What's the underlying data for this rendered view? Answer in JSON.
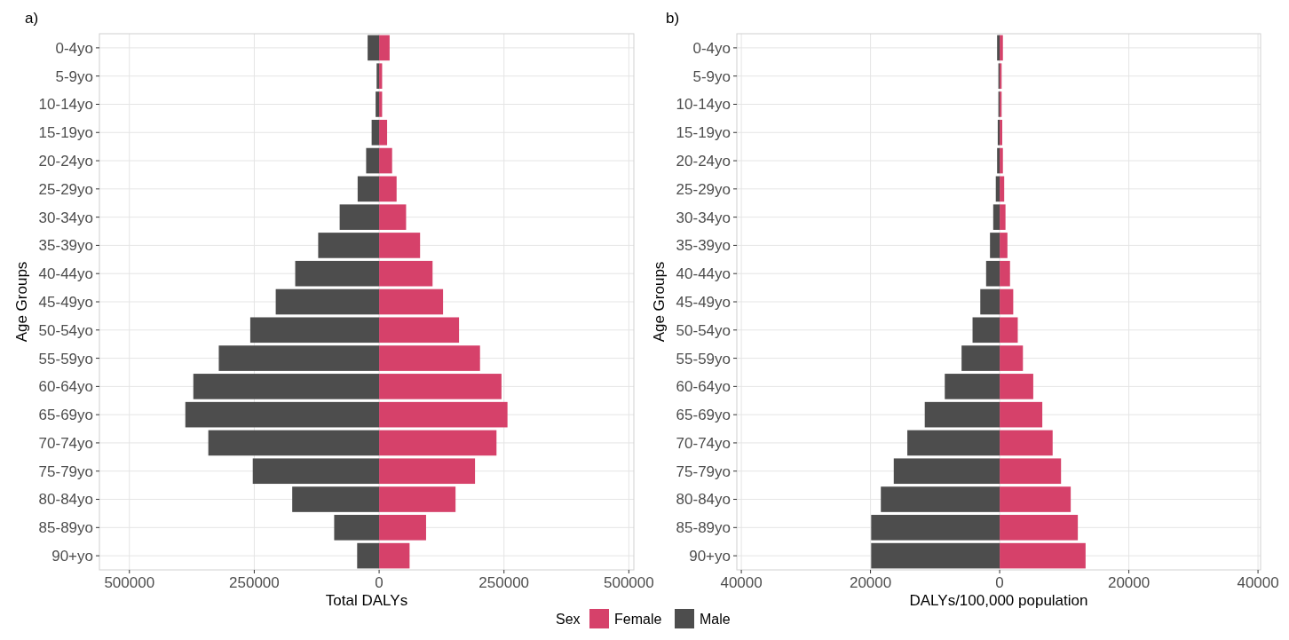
{
  "chart_data": [
    {
      "type": "bar",
      "orientation": "horizontal",
      "stacked": true,
      "title": "a)",
      "xlabel": "Total DALYs",
      "ylabel": "Age Groups",
      "legend_title": "Sex",
      "legend": "bottom",
      "grid": true,
      "categories": [
        "0-4yo",
        "5-9yo",
        "10-14yo",
        "15-19yo",
        "20-24yo",
        "25-29yo",
        "30-34yo",
        "35-39yo",
        "40-44yo",
        "45-49yo",
        "50-54yo",
        "55-59yo",
        "60-64yo",
        "65-69yo",
        "70-74yo",
        "75-79yo",
        "80-84yo",
        "85-89yo",
        "90+yo"
      ],
      "xlim": [
        -560000,
        510000
      ],
      "xticks": [
        {
          "value": -500000,
          "label": "500000"
        },
        {
          "value": -250000,
          "label": "250000"
        },
        0,
        250000,
        500000
      ],
      "series": [
        {
          "name": "Female",
          "color": "#d6416a",
          "values": [
            21000,
            6000,
            6000,
            16000,
            26000,
            35000,
            54000,
            82000,
            107000,
            128000,
            160000,
            202000,
            245000,
            257000,
            235000,
            192000,
            153000,
            94000,
            61000
          ]
        },
        {
          "name": "Male",
          "color": "#4d4d4d",
          "values": [
            -23000,
            -5000,
            -7000,
            -15000,
            -26000,
            -43000,
            -79000,
            -122000,
            -168000,
            -207000,
            -258000,
            -321000,
            -372000,
            -388000,
            -342000,
            -253000,
            -174000,
            -90000,
            -44000
          ]
        }
      ]
    },
    {
      "type": "bar",
      "orientation": "horizontal",
      "stacked": true,
      "title": "b)",
      "xlabel": "DALYs/100,000 population",
      "ylabel": "Age Groups",
      "grid": true,
      "categories": [
        "0-4yo",
        "5-9yo",
        "10-14yo",
        "15-19yo",
        "20-24yo",
        "25-29yo",
        "30-34yo",
        "35-39yo",
        "40-44yo",
        "45-49yo",
        "50-54yo",
        "55-59yo",
        "60-64yo",
        "65-69yo",
        "70-74yo",
        "75-79yo",
        "80-84yo",
        "85-89yo",
        "90+yo"
      ],
      "xlim": [
        -40700,
        40400
      ],
      "xticks": [
        {
          "value": -40000,
          "label": "40000"
        },
        {
          "value": -20000,
          "label": "20000"
        },
        0,
        20000,
        40000
      ],
      "series": [
        {
          "color": "#d6416a",
          "values": [
            500,
            300,
            300,
            400,
            500,
            700,
            900,
            1200,
            1600,
            2100,
            2800,
            3600,
            5200,
            6600,
            8200,
            9500,
            11000,
            12100,
            13300
          ]
        },
        {
          "color": "#4d4d4d",
          "values": [
            -400,
            -200,
            -200,
            -300,
            -400,
            -600,
            -1000,
            -1500,
            -2100,
            -3000,
            -4200,
            -5900,
            -8500,
            -11600,
            -14300,
            -16400,
            -18400,
            -19900,
            -19900
          ]
        }
      ]
    }
  ]
}
